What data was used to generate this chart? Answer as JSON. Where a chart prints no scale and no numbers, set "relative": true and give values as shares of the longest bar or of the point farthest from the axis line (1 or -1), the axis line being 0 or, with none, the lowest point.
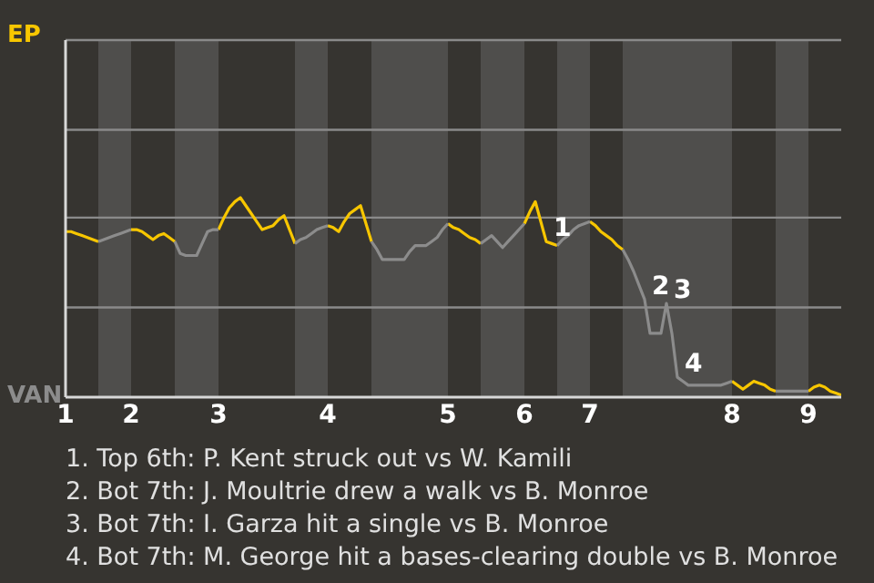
{
  "chart_data": {
    "type": "line",
    "relative": true,
    "categories": [
      "1",
      null,
      null,
      null,
      null,
      null,
      null,
      null,
      null,
      null,
      null,
      null,
      "2",
      null,
      null,
      null,
      null,
      null,
      null,
      null,
      null,
      null,
      null,
      null,
      null,
      null,
      null,
      null,
      "3",
      null,
      null,
      null,
      null,
      null,
      null,
      null,
      null,
      null,
      null,
      null,
      null,
      null,
      null,
      null,
      null,
      null,
      null,
      null,
      "4",
      null,
      null,
      null,
      null,
      null,
      null,
      null,
      null,
      null,
      null,
      null,
      null,
      null,
      null,
      null,
      null,
      null,
      null,
      null,
      null,
      null,
      "5",
      null,
      null,
      null,
      null,
      null,
      null,
      null,
      null,
      null,
      null,
      null,
      null,
      null,
      "6",
      null,
      null,
      null,
      null,
      null,
      null,
      null,
      null,
      null,
      null,
      null,
      "7",
      null,
      null,
      null,
      null,
      null,
      null,
      null,
      null,
      null,
      null,
      null,
      null,
      null,
      null,
      null,
      null,
      null,
      null,
      null,
      null,
      null,
      null,
      null,
      null,
      null,
      "8",
      null,
      null,
      null,
      null,
      null,
      null,
      null,
      null,
      null,
      null,
      null,
      null,
      null,
      "9",
      null,
      null,
      null,
      null,
      null,
      null
    ],
    "series": [
      {
        "name": "EP",
        "color": "#f7c600",
        "values": [
          0.83,
          0.83,
          0.82,
          0.81,
          0.8,
          0.79,
          0.78,
          null,
          null,
          null,
          null,
          null,
          0.84,
          0.84,
          0.83,
          0.81,
          0.79,
          0.81,
          0.82,
          0.8,
          0.78,
          null,
          null,
          null,
          null,
          null,
          null,
          null,
          0.84,
          0.9,
          0.95,
          0.98,
          1.0,
          0.96,
          0.92,
          0.88,
          0.84,
          0.85,
          0.86,
          0.89,
          0.91,
          0.84,
          0.77,
          null,
          null,
          null,
          null,
          null,
          0.86,
          0.85,
          0.83,
          0.88,
          0.92,
          0.94,
          0.96,
          0.87,
          0.78,
          null,
          null,
          null,
          null,
          null,
          null,
          null,
          null,
          null,
          null,
          null,
          null,
          null,
          0.87,
          0.85,
          0.84,
          0.82,
          0.8,
          0.79,
          0.77,
          null,
          null,
          null,
          null,
          null,
          null,
          null,
          0.87,
          0.93,
          0.98,
          0.88,
          0.78,
          0.77,
          0.76,
          null,
          null,
          null,
          null,
          null,
          0.88,
          0.86,
          0.83,
          0.81,
          0.79,
          0.76,
          0.74,
          null,
          null,
          null,
          null,
          null,
          null,
          null,
          null,
          null,
          null,
          null,
          null,
          null,
          null,
          null,
          null,
          null,
          null,
          null,
          0.08,
          0.06,
          0.04,
          0.06,
          0.08,
          0.07,
          0.06,
          0.04,
          0.03,
          null,
          null,
          null,
          null,
          null,
          0.03,
          0.05,
          0.06,
          0.05,
          0.03,
          0.02,
          0.01
        ]
      },
      {
        "name": "VAN",
        "color": "#8c8c8c",
        "values": [
          null,
          null,
          null,
          null,
          null,
          null,
          0.78,
          0.79,
          0.8,
          0.81,
          0.82,
          0.83,
          0.84,
          null,
          null,
          null,
          null,
          null,
          null,
          null,
          0.78,
          0.72,
          0.71,
          0.71,
          0.71,
          0.77,
          0.83,
          0.84,
          0.84,
          null,
          null,
          null,
          null,
          null,
          null,
          null,
          null,
          null,
          null,
          null,
          null,
          null,
          0.77,
          0.79,
          0.8,
          0.82,
          0.84,
          0.85,
          0.86,
          null,
          null,
          null,
          null,
          null,
          null,
          null,
          0.78,
          0.74,
          0.69,
          0.69,
          0.69,
          0.69,
          0.69,
          0.73,
          0.76,
          0.76,
          0.76,
          0.78,
          0.8,
          0.84,
          0.87,
          null,
          null,
          null,
          null,
          null,
          0.77,
          0.79,
          0.81,
          0.78,
          0.75,
          0.78,
          0.81,
          0.84,
          0.87,
          null,
          null,
          null,
          null,
          null,
          0.76,
          0.79,
          0.81,
          0.84,
          0.86,
          0.87,
          0.88,
          null,
          null,
          null,
          null,
          null,
          0.74,
          0.69,
          0.63,
          0.56,
          0.49,
          0.32,
          0.32,
          0.32,
          0.47,
          0.32,
          0.1,
          0.08,
          0.06,
          0.06,
          0.06,
          0.06,
          0.06,
          0.06,
          0.06,
          0.07,
          0.08,
          null,
          null,
          null,
          null,
          null,
          null,
          null,
          0.03,
          0.03,
          0.03,
          0.03,
          0.03,
          0.03,
          0.03,
          null,
          null,
          null,
          null,
          null,
          null
        ]
      }
    ],
    "annotations": [
      {
        "text": "1",
        "y": 0.78
      },
      {
        "text": "2",
        "y": 0.49
      },
      {
        "text": "3",
        "y": 0.47
      },
      {
        "text": "4",
        "y": 0.1
      },
      "1. Top 6th: P. Kent struck out vs W. Kamili",
      "2. Bot 7th: J. Moultrie drew a walk vs B. Monroe",
      "3. Bot 7th: I. Garza hit a single vs B. Monroe",
      "4. Bot 7th: M. George hit a bases-clearing double vs B. Monroe"
    ],
    "ref_lines": [
      {
        "axis": "y",
        "value": 0.45,
        "color": "#8a8a8a"
      },
      {
        "axis": "y",
        "value": 0.9,
        "color": "#8a8a8a"
      },
      {
        "axis": "y",
        "value": 1.34,
        "color": "#8a8a8a"
      },
      {
        "axis": "y",
        "value": 1.79,
        "color": "#8a8a8a"
      }
    ],
    "marker": "none",
    "line_style": "solid"
  }
}
